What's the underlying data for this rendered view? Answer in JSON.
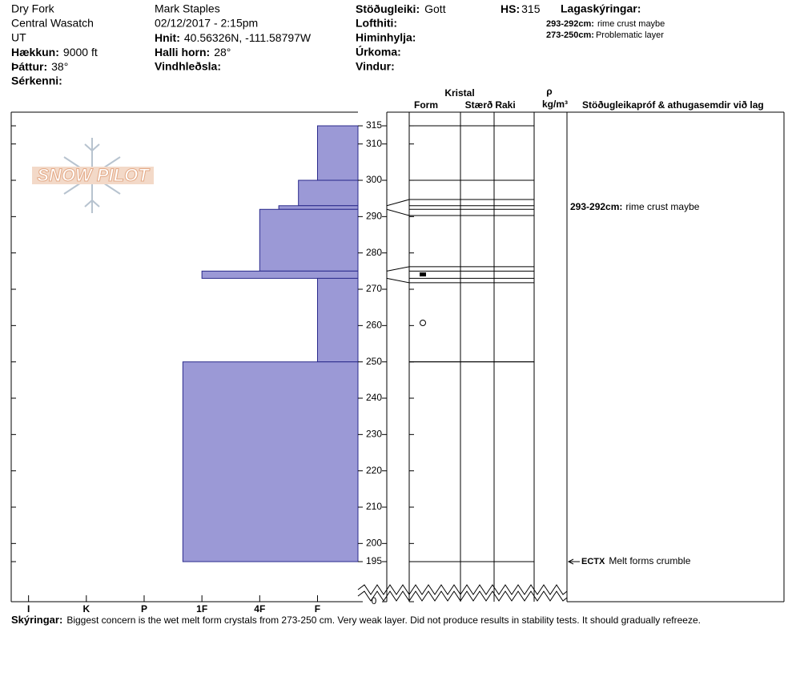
{
  "header": {
    "location": "Dry Fork",
    "range": "Central Wasatch",
    "state": "UT",
    "elevation": {
      "label": "Hækkun:",
      "value": "9000 ft"
    },
    "aspect": {
      "label": "Þáttur:",
      "value": "38°"
    },
    "features": {
      "label": "Sérkenni:"
    },
    "observer": "Mark Staples",
    "datetime": "02/12/2017 - 2:15pm",
    "coords": {
      "label": "Hnit:",
      "value": "40.56326N, -111.58797W"
    },
    "slope": {
      "label": "Halli horn:",
      "value": "28°"
    },
    "wind_loading": {
      "label": "Vindhleðsla:"
    },
    "stability": {
      "label": "Stöðugleiki:",
      "value": "Gott"
    },
    "air_temp": {
      "label": "Lofthiti:"
    },
    "sky": {
      "label": "Himinhylja:"
    },
    "precip": {
      "label": "Úrkoma:"
    },
    "wind": {
      "label": "Vindur:"
    },
    "hs": {
      "label": "HS:",
      "value": "315"
    },
    "layer_notes": {
      "title": "Lagaskýringar:",
      "items": [
        {
          "range": "293-292cm:",
          "text": "rime crust maybe"
        },
        {
          "range": "273-250cm:",
          "text": "Problematic layer"
        }
      ]
    }
  },
  "logo": "SNOW PILOT",
  "chart_data": {
    "type": "hardness-profile",
    "color": "#9b99d6",
    "layers": [
      {
        "top": 315,
        "bottom": 300,
        "hardness": 1
      },
      {
        "top": 300,
        "bottom": 293,
        "hardness": 1.33
      },
      {
        "top": 293,
        "bottom": 292,
        "hardness": 1.67
      },
      {
        "top": 292,
        "bottom": 275,
        "hardness": 2
      },
      {
        "top": 275,
        "bottom": 273,
        "hardness": 3
      },
      {
        "top": 273,
        "bottom": 250,
        "hardness": 1
      },
      {
        "top": 250,
        "bottom": 195,
        "hardness": 3.33
      }
    ],
    "xlim": [
      6.3,
      0.3
    ],
    "xticks": [
      {
        "value": 6,
        "label": "I"
      },
      {
        "value": 5,
        "label": "K"
      },
      {
        "value": 4,
        "label": "P"
      },
      {
        "value": 3,
        "label": "1F"
      },
      {
        "value": 2,
        "label": "4F"
      },
      {
        "value": 1,
        "label": "F"
      }
    ],
    "ylim": [
      186,
      319
    ],
    "yticks": [
      315,
      310,
      300,
      290,
      280,
      270,
      260,
      250,
      240,
      230,
      220,
      210,
      200,
      195,
      {
        "value": 0,
        "label": "0"
      }
    ],
    "columns": {
      "crystal": "Kristal",
      "form": "Form",
      "size": "Stærð",
      "moisture": "Raki",
      "density_symbol": "ρ",
      "density_unit": "kg/m³",
      "comments": "Stöðugleikapróf & athugasemdir við lag"
    },
    "layer_comments": [
      {
        "top": 293,
        "bottom": 292,
        "range": "293-292cm:",
        "text": "rime crust maybe"
      }
    ],
    "tests": [
      {
        "depth": 195,
        "code": "ECTX",
        "text": "Melt forms crumble"
      }
    ]
  },
  "notes": {
    "label": "Skýringar:",
    "text": "Biggest concern is the wet melt form crystals from 273-250 cm. Very weak layer. Did not produce results in stability tests. It should gradually refreeze."
  }
}
